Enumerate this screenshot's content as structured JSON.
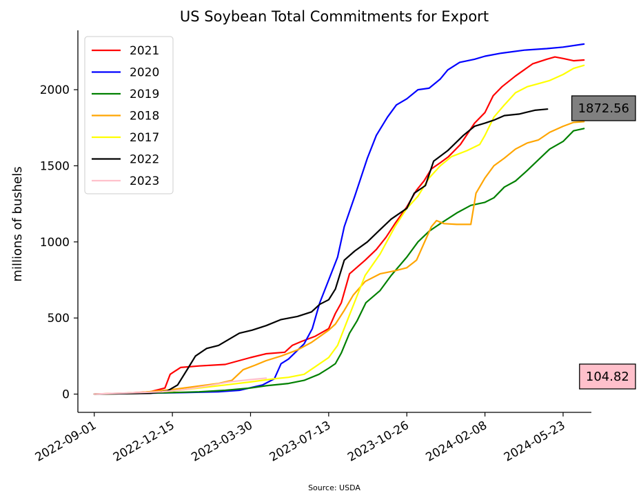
{
  "chart_data": {
    "type": "line",
    "title": "US Soybean Total Commitments for Export",
    "xlabel": "",
    "ylabel": "millions of bushels",
    "source": "Source: USDA",
    "x_ticks": [
      "2022-09-01",
      "2022-12-15",
      "2023-03-30",
      "2023-07-13",
      "2023-10-26",
      "2024-02-08",
      "2024-05-23"
    ],
    "xlim": [
      "2022-08-10",
      "2024-06-30"
    ],
    "y_ticks": [
      0,
      500,
      1000,
      1500,
      2000
    ],
    "ylim": [
      -120,
      2390
    ],
    "grid": false,
    "legend_position": "top-left",
    "series": [
      {
        "name": "2021",
        "color": "#ff0000",
        "points": [
          [
            "2022-09-01",
            0
          ],
          [
            "2022-10-10",
            5
          ],
          [
            "2022-11-15",
            15
          ],
          [
            "2022-12-05",
            40
          ],
          [
            "2022-12-12",
            130
          ],
          [
            "2022-12-26",
            175
          ],
          [
            "2023-01-20",
            185
          ],
          [
            "2023-02-24",
            195
          ],
          [
            "2023-03-30",
            240
          ],
          [
            "2023-04-20",
            265
          ],
          [
            "2023-05-15",
            275
          ],
          [
            "2023-05-25",
            320
          ],
          [
            "2023-06-06",
            345
          ],
          [
            "2023-06-25",
            380
          ],
          [
            "2023-07-13",
            430
          ],
          [
            "2023-07-22",
            530
          ],
          [
            "2023-07-30",
            600
          ],
          [
            "2023-08-10",
            790
          ],
          [
            "2023-08-31",
            880
          ],
          [
            "2023-09-15",
            950
          ],
          [
            "2023-09-28",
            1030
          ],
          [
            "2023-10-10",
            1120
          ],
          [
            "2023-10-26",
            1230
          ],
          [
            "2023-11-08",
            1340
          ],
          [
            "2023-11-18",
            1400
          ],
          [
            "2023-11-28",
            1480
          ],
          [
            "2023-12-10",
            1520
          ],
          [
            "2023-12-21",
            1560
          ],
          [
            "2024-01-06",
            1640
          ],
          [
            "2024-01-25",
            1780
          ],
          [
            "2024-02-08",
            1850
          ],
          [
            "2024-02-19",
            1960
          ],
          [
            "2024-03-02",
            2020
          ],
          [
            "2024-03-20",
            2090
          ],
          [
            "2024-04-12",
            2170
          ],
          [
            "2024-05-01",
            2200
          ],
          [
            "2024-05-12",
            2215
          ],
          [
            "2024-05-23",
            2205
          ],
          [
            "2024-06-06",
            2190
          ],
          [
            "2024-06-20",
            2195
          ]
        ]
      },
      {
        "name": "2020",
        "color": "#0000ff",
        "points": [
          [
            "2022-09-01",
            0
          ],
          [
            "2022-11-01",
            5
          ],
          [
            "2023-01-01",
            10
          ],
          [
            "2023-02-15",
            15
          ],
          [
            "2023-03-15",
            25
          ],
          [
            "2023-04-15",
            60
          ],
          [
            "2023-05-01",
            100
          ],
          [
            "2023-05-10",
            200
          ],
          [
            "2023-05-20",
            230
          ],
          [
            "2023-06-10",
            330
          ],
          [
            "2023-06-21",
            430
          ],
          [
            "2023-07-01",
            600
          ],
          [
            "2023-07-13",
            750
          ],
          [
            "2023-07-25",
            900
          ],
          [
            "2023-08-03",
            1100
          ],
          [
            "2023-08-17",
            1300
          ],
          [
            "2023-09-03",
            1550
          ],
          [
            "2023-09-15",
            1700
          ],
          [
            "2023-09-30",
            1820
          ],
          [
            "2023-10-12",
            1900
          ],
          [
            "2023-10-26",
            1940
          ],
          [
            "2023-11-10",
            2000
          ],
          [
            "2023-11-25",
            2010
          ],
          [
            "2023-12-10",
            2070
          ],
          [
            "2023-12-20",
            2130
          ],
          [
            "2024-01-05",
            2180
          ],
          [
            "2024-01-25",
            2200
          ],
          [
            "2024-02-08",
            2220
          ],
          [
            "2024-03-01",
            2240
          ],
          [
            "2024-04-01",
            2260
          ],
          [
            "2024-05-01",
            2270
          ],
          [
            "2024-05-23",
            2280
          ],
          [
            "2024-06-20",
            2300
          ]
        ]
      },
      {
        "name": "2019",
        "color": "#008000",
        "points": [
          [
            "2022-09-01",
            0
          ],
          [
            "2022-11-01",
            5
          ],
          [
            "2022-12-15",
            10
          ],
          [
            "2023-01-20",
            15
          ],
          [
            "2023-02-24",
            25
          ],
          [
            "2023-03-30",
            40
          ],
          [
            "2023-04-20",
            55
          ],
          [
            "2023-05-20",
            70
          ],
          [
            "2023-06-10",
            90
          ],
          [
            "2023-06-30",
            130
          ],
          [
            "2023-07-13",
            170
          ],
          [
            "2023-07-22",
            200
          ],
          [
            "2023-07-30",
            270
          ],
          [
            "2023-08-10",
            400
          ],
          [
            "2023-08-20",
            480
          ],
          [
            "2023-09-01",
            600
          ],
          [
            "2023-09-20",
            680
          ],
          [
            "2023-10-05",
            780
          ],
          [
            "2023-10-26",
            900
          ],
          [
            "2023-11-10",
            1000
          ],
          [
            "2023-11-25",
            1070
          ],
          [
            "2023-12-10",
            1120
          ],
          [
            "2024-01-01",
            1190
          ],
          [
            "2024-01-20",
            1240
          ],
          [
            "2024-02-08",
            1260
          ],
          [
            "2024-02-20",
            1290
          ],
          [
            "2024-03-05",
            1360
          ],
          [
            "2024-03-20",
            1400
          ],
          [
            "2024-04-05",
            1470
          ],
          [
            "2024-04-20",
            1540
          ],
          [
            "2024-05-05",
            1610
          ],
          [
            "2024-05-23",
            1660
          ],
          [
            "2024-06-06",
            1730
          ],
          [
            "2024-06-20",
            1745
          ]
        ]
      },
      {
        "name": "2018",
        "color": "#ffa500",
        "points": [
          [
            "2022-09-01",
            0
          ],
          [
            "2022-11-01",
            10
          ],
          [
            "2022-12-15",
            30
          ],
          [
            "2023-01-15",
            50
          ],
          [
            "2023-02-15",
            70
          ],
          [
            "2023-03-05",
            90
          ],
          [
            "2023-03-20",
            160
          ],
          [
            "2023-04-05",
            190
          ],
          [
            "2023-04-20",
            220
          ],
          [
            "2023-05-10",
            250
          ],
          [
            "2023-06-01",
            290
          ],
          [
            "2023-06-20",
            340
          ],
          [
            "2023-07-13",
            420
          ],
          [
            "2023-07-22",
            460
          ],
          [
            "2023-08-03",
            550
          ],
          [
            "2023-08-15",
            650
          ],
          [
            "2023-08-31",
            740
          ],
          [
            "2023-09-20",
            790
          ],
          [
            "2023-10-10",
            810
          ],
          [
            "2023-10-26",
            830
          ],
          [
            "2023-11-08",
            880
          ],
          [
            "2023-11-18",
            990
          ],
          [
            "2023-11-28",
            1100
          ],
          [
            "2023-12-05",
            1140
          ],
          [
            "2023-12-15",
            1120
          ],
          [
            "2024-01-01",
            1115
          ],
          [
            "2024-01-20",
            1115
          ],
          [
            "2024-01-27",
            1320
          ],
          [
            "2024-02-08",
            1420
          ],
          [
            "2024-02-20",
            1500
          ],
          [
            "2024-03-05",
            1550
          ],
          [
            "2024-03-20",
            1610
          ],
          [
            "2024-04-05",
            1650
          ],
          [
            "2024-04-20",
            1670
          ],
          [
            "2024-05-05",
            1720
          ],
          [
            "2024-05-23",
            1760
          ],
          [
            "2024-06-06",
            1785
          ],
          [
            "2024-06-20",
            1790
          ]
        ]
      },
      {
        "name": "2017",
        "color": "#ffff00",
        "points": [
          [
            "2022-09-01",
            0
          ],
          [
            "2022-11-01",
            5
          ],
          [
            "2022-12-15",
            20
          ],
          [
            "2023-01-20",
            40
          ],
          [
            "2023-02-24",
            60
          ],
          [
            "2023-03-30",
            80
          ],
          [
            "2023-04-30",
            100
          ],
          [
            "2023-05-20",
            110
          ],
          [
            "2023-06-10",
            130
          ],
          [
            "2023-06-25",
            180
          ],
          [
            "2023-07-13",
            240
          ],
          [
            "2023-07-25",
            320
          ],
          [
            "2023-08-10",
            520
          ],
          [
            "2023-08-31",
            780
          ],
          [
            "2023-09-20",
            920
          ],
          [
            "2023-10-10",
            1100
          ],
          [
            "2023-10-26",
            1220
          ],
          [
            "2023-11-10",
            1300
          ],
          [
            "2023-11-25",
            1420
          ],
          [
            "2023-12-10",
            1500
          ],
          [
            "2023-12-25",
            1560
          ],
          [
            "2024-01-15",
            1600
          ],
          [
            "2024-02-01",
            1640
          ],
          [
            "2024-02-08",
            1700
          ],
          [
            "2024-02-20",
            1820
          ],
          [
            "2024-03-05",
            1900
          ],
          [
            "2024-03-20",
            1980
          ],
          [
            "2024-04-05",
            2020
          ],
          [
            "2024-04-20",
            2040
          ],
          [
            "2024-05-05",
            2060
          ],
          [
            "2024-05-23",
            2100
          ],
          [
            "2024-06-06",
            2140
          ],
          [
            "2024-06-20",
            2160
          ]
        ]
      },
      {
        "name": "2022",
        "color": "#000000",
        "points": [
          [
            "2022-09-01",
            0
          ],
          [
            "2022-11-15",
            5
          ],
          [
            "2022-12-08",
            20
          ],
          [
            "2022-12-22",
            60
          ],
          [
            "2023-01-05",
            170
          ],
          [
            "2023-01-15",
            250
          ],
          [
            "2023-01-30",
            300
          ],
          [
            "2023-02-15",
            320
          ],
          [
            "2023-03-01",
            360
          ],
          [
            "2023-03-15",
            400
          ],
          [
            "2023-04-01",
            420
          ],
          [
            "2023-04-20",
            450
          ],
          [
            "2023-05-10",
            490
          ],
          [
            "2023-06-01",
            510
          ],
          [
            "2023-06-20",
            540
          ],
          [
            "2023-07-01",
            590
          ],
          [
            "2023-07-13",
            620
          ],
          [
            "2023-07-22",
            690
          ],
          [
            "2023-08-03",
            880
          ],
          [
            "2023-08-17",
            940
          ],
          [
            "2023-09-03",
            1000
          ],
          [
            "2023-09-20",
            1080
          ],
          [
            "2023-10-05",
            1150
          ],
          [
            "2023-10-26",
            1220
          ],
          [
            "2023-11-05",
            1320
          ],
          [
            "2023-11-20",
            1370
          ],
          [
            "2023-12-01",
            1530
          ],
          [
            "2023-12-20",
            1600
          ],
          [
            "2024-01-10",
            1700
          ],
          [
            "2024-01-25",
            1760
          ],
          [
            "2024-02-08",
            1780
          ],
          [
            "2024-02-20",
            1800
          ],
          [
            "2024-03-05",
            1830
          ],
          [
            "2024-03-25",
            1840
          ],
          [
            "2024-04-15",
            1865
          ],
          [
            "2024-05-02",
            1872.56
          ]
        ]
      },
      {
        "name": "2023",
        "color": "#ffc0cb",
        "points": [
          [
            "2022-09-01",
            0
          ],
          [
            "2022-10-01",
            5
          ],
          [
            "2022-11-01",
            10
          ],
          [
            "2022-12-01",
            15
          ],
          [
            "2023-01-01",
            30
          ],
          [
            "2023-02-01",
            55
          ],
          [
            "2023-03-01",
            80
          ],
          [
            "2023-03-30",
            95
          ],
          [
            "2023-04-20",
            104.82
          ]
        ]
      }
    ],
    "annotations": [
      {
        "label": "1872.56",
        "series": "2022",
        "color": "#808080"
      },
      {
        "label": "104.82",
        "series": "2023",
        "color": "#ffc0cb"
      }
    ]
  }
}
